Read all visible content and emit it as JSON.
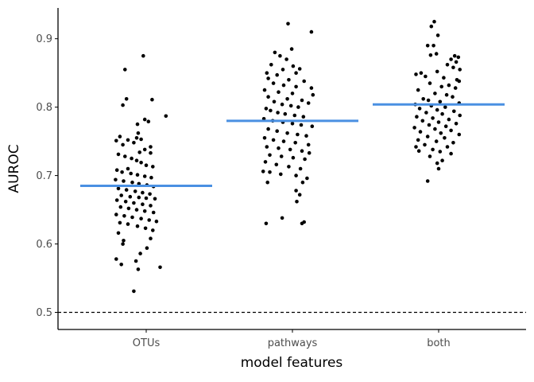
{
  "chart_data": {
    "type": "scatter",
    "xlabel": "model features",
    "ylabel": "AUROC",
    "categories": [
      "OTUs",
      "pathways",
      "both"
    ],
    "ylim": [
      0.475,
      0.945
    ],
    "yticks": [
      0.5,
      0.6,
      0.7,
      0.8,
      0.9
    ],
    "ytick_labels": [
      "0.5",
      "0.6",
      "0.7",
      "0.8",
      "0.9"
    ],
    "grid": false,
    "legend": "none",
    "reference_line": {
      "y": 0.5,
      "style": "dashed",
      "color": "#000000"
    },
    "means": [
      0.685,
      0.78,
      0.804
    ],
    "mean_line_color": "#4a90e2",
    "point_color": "#000000",
    "series": [
      {
        "category": "OTUs",
        "points": [
          {
            "x": -0.04,
            "y": 0.875
          },
          {
            "x": -0.29,
            "y": 0.855
          },
          {
            "x": -0.27,
            "y": 0.812
          },
          {
            "x": 0.08,
            "y": 0.811
          },
          {
            "x": -0.32,
            "y": 0.803
          },
          {
            "x": 0.27,
            "y": 0.787
          },
          {
            "x": -0.02,
            "y": 0.782
          },
          {
            "x": 0.03,
            "y": 0.779
          },
          {
            "x": -0.12,
            "y": 0.775
          },
          {
            "x": -0.11,
            "y": 0.762
          },
          {
            "x": -0.36,
            "y": 0.757
          },
          {
            "x": -0.13,
            "y": 0.755
          },
          {
            "x": -0.07,
            "y": 0.753
          },
          {
            "x": -0.25,
            "y": 0.752
          },
          {
            "x": -0.41,
            "y": 0.751
          },
          {
            "x": -0.17,
            "y": 0.748
          },
          {
            "x": -0.32,
            "y": 0.745
          },
          {
            "x": 0.06,
            "y": 0.742
          },
          {
            "x": -0.02,
            "y": 0.738
          },
          {
            "x": -0.09,
            "y": 0.734
          },
          {
            "x": 0.06,
            "y": 0.733
          },
          {
            "x": -0.38,
            "y": 0.731
          },
          {
            "x": -0.29,
            "y": 0.728
          },
          {
            "x": -0.2,
            "y": 0.725
          },
          {
            "x": -0.13,
            "y": 0.722
          },
          {
            "x": -0.07,
            "y": 0.719
          },
          {
            "x": 0.0,
            "y": 0.715
          },
          {
            "x": 0.09,
            "y": 0.713
          },
          {
            "x": -0.25,
            "y": 0.71
          },
          {
            "x": -0.4,
            "y": 0.708
          },
          {
            "x": -0.33,
            "y": 0.705
          },
          {
            "x": -0.21,
            "y": 0.703
          },
          {
            "x": -0.12,
            "y": 0.701
          },
          {
            "x": -0.02,
            "y": 0.699
          },
          {
            "x": 0.07,
            "y": 0.697
          },
          {
            "x": -0.42,
            "y": 0.694
          },
          {
            "x": -0.31,
            "y": 0.692
          },
          {
            "x": -0.19,
            "y": 0.69
          },
          {
            "x": -0.1,
            "y": 0.688
          },
          {
            "x": 0.01,
            "y": 0.686
          },
          {
            "x": 0.1,
            "y": 0.684
          },
          {
            "x": -0.38,
            "y": 0.681
          },
          {
            "x": -0.27,
            "y": 0.679
          },
          {
            "x": -0.15,
            "y": 0.677
          },
          {
            "x": -0.05,
            "y": 0.675
          },
          {
            "x": 0.05,
            "y": 0.673
          },
          {
            "x": -0.34,
            "y": 0.671
          },
          {
            "x": -0.22,
            "y": 0.669
          },
          {
            "x": -0.1,
            "y": 0.668
          },
          {
            "x": 0.0,
            "y": 0.667
          },
          {
            "x": 0.12,
            "y": 0.666
          },
          {
            "x": -0.4,
            "y": 0.664
          },
          {
            "x": -0.28,
            "y": 0.662
          },
          {
            "x": -0.17,
            "y": 0.66
          },
          {
            "x": -0.05,
            "y": 0.658
          },
          {
            "x": 0.06,
            "y": 0.656
          },
          {
            "x": -0.35,
            "y": 0.654
          },
          {
            "x": -0.24,
            "y": 0.652
          },
          {
            "x": -0.13,
            "y": 0.65
          },
          {
            "x": -0.02,
            "y": 0.648
          },
          {
            "x": 0.1,
            "y": 0.646
          },
          {
            "x": -0.41,
            "y": 0.643
          },
          {
            "x": -0.3,
            "y": 0.641
          },
          {
            "x": -0.19,
            "y": 0.639
          },
          {
            "x": -0.07,
            "y": 0.637
          },
          {
            "x": 0.04,
            "y": 0.635
          },
          {
            "x": 0.14,
            "y": 0.633
          },
          {
            "x": -0.36,
            "y": 0.631
          },
          {
            "x": -0.25,
            "y": 0.629
          },
          {
            "x": -0.12,
            "y": 0.626
          },
          {
            "x": -0.01,
            "y": 0.623
          },
          {
            "x": 0.09,
            "y": 0.62
          },
          {
            "x": -0.38,
            "y": 0.616
          },
          {
            "x": 0.06,
            "y": 0.608
          },
          {
            "x": -0.31,
            "y": 0.605
          },
          {
            "x": -0.32,
            "y": 0.6
          },
          {
            "x": 0.01,
            "y": 0.594
          },
          {
            "x": -0.08,
            "y": 0.586
          },
          {
            "x": -0.41,
            "y": 0.578
          },
          {
            "x": -0.14,
            "y": 0.575
          },
          {
            "x": -0.34,
            "y": 0.57
          },
          {
            "x": 0.19,
            "y": 0.566
          },
          {
            "x": -0.11,
            "y": 0.563
          },
          {
            "x": -0.17,
            "y": 0.531
          }
        ]
      },
      {
        "category": "pathways",
        "points": [
          {
            "x": -0.06,
            "y": 0.922
          },
          {
            "x": 0.26,
            "y": 0.91
          },
          {
            "x": -0.24,
            "y": 0.88
          },
          {
            "x": -0.01,
            "y": 0.885
          },
          {
            "x": -0.17,
            "y": 0.875
          },
          {
            "x": -0.08,
            "y": 0.87
          },
          {
            "x": -0.29,
            "y": 0.862
          },
          {
            "x": 0.01,
            "y": 0.86
          },
          {
            "x": 0.1,
            "y": 0.856
          },
          {
            "x": -0.13,
            "y": 0.855
          },
          {
            "x": -0.35,
            "y": 0.85
          },
          {
            "x": 0.05,
            "y": 0.85
          },
          {
            "x": -0.21,
            "y": 0.847
          },
          {
            "x": -0.33,
            "y": 0.842
          },
          {
            "x": -0.05,
            "y": 0.84
          },
          {
            "x": 0.16,
            "y": 0.838
          },
          {
            "x": -0.26,
            "y": 0.835
          },
          {
            "x": -0.12,
            "y": 0.832
          },
          {
            "x": 0.05,
            "y": 0.83
          },
          {
            "x": 0.26,
            "y": 0.828
          },
          {
            "x": -0.38,
            "y": 0.825
          },
          {
            "x": -0.19,
            "y": 0.822
          },
          {
            "x": 0.0,
            "y": 0.82
          },
          {
            "x": 0.28,
            "y": 0.818
          },
          {
            "x": -0.33,
            "y": 0.815
          },
          {
            "x": -0.07,
            "y": 0.812
          },
          {
            "x": 0.13,
            "y": 0.81
          },
          {
            "x": -0.25,
            "y": 0.808
          },
          {
            "x": 0.22,
            "y": 0.806
          },
          {
            "x": -0.14,
            "y": 0.804
          },
          {
            "x": -0.02,
            "y": 0.802
          },
          {
            "x": 0.08,
            "y": 0.8
          },
          {
            "x": -0.36,
            "y": 0.798
          },
          {
            "x": -0.3,
            "y": 0.795
          },
          {
            "x": -0.2,
            "y": 0.792
          },
          {
            "x": -0.1,
            "y": 0.79
          },
          {
            "x": 0.03,
            "y": 0.788
          },
          {
            "x": 0.15,
            "y": 0.786
          },
          {
            "x": -0.39,
            "y": 0.783
          },
          {
            "x": -0.27,
            "y": 0.78
          },
          {
            "x": -0.13,
            "y": 0.778
          },
          {
            "x": 0.0,
            "y": 0.776
          },
          {
            "x": 0.12,
            "y": 0.774
          },
          {
            "x": 0.27,
            "y": 0.772
          },
          {
            "x": -0.33,
            "y": 0.768
          },
          {
            "x": -0.21,
            "y": 0.765
          },
          {
            "x": -0.07,
            "y": 0.762
          },
          {
            "x": 0.07,
            "y": 0.76
          },
          {
            "x": 0.19,
            "y": 0.758
          },
          {
            "x": -0.38,
            "y": 0.755
          },
          {
            "x": -0.26,
            "y": 0.752
          },
          {
            "x": -0.12,
            "y": 0.75
          },
          {
            "x": 0.04,
            "y": 0.748
          },
          {
            "x": 0.22,
            "y": 0.745
          },
          {
            "x": -0.35,
            "y": 0.742
          },
          {
            "x": -0.19,
            "y": 0.74
          },
          {
            "x": -0.03,
            "y": 0.738
          },
          {
            "x": 0.13,
            "y": 0.736
          },
          {
            "x": 0.23,
            "y": 0.733
          },
          {
            "x": -0.31,
            "y": 0.73
          },
          {
            "x": -0.15,
            "y": 0.728
          },
          {
            "x": 0.01,
            "y": 0.726
          },
          {
            "x": 0.17,
            "y": 0.724
          },
          {
            "x": -0.37,
            "y": 0.72
          },
          {
            "x": -0.22,
            "y": 0.716
          },
          {
            "x": -0.05,
            "y": 0.713
          },
          {
            "x": 0.11,
            "y": 0.71
          },
          {
            "x": -0.4,
            "y": 0.706
          },
          {
            "x": -0.31,
            "y": 0.705
          },
          {
            "x": -0.16,
            "y": 0.702
          },
          {
            "x": 0.05,
            "y": 0.7
          },
          {
            "x": 0.2,
            "y": 0.696
          },
          {
            "x": -0.34,
            "y": 0.69
          },
          {
            "x": 0.14,
            "y": 0.69
          },
          {
            "x": 0.05,
            "y": 0.678
          },
          {
            "x": 0.1,
            "y": 0.672
          },
          {
            "x": 0.06,
            "y": 0.662
          },
          {
            "x": -0.14,
            "y": 0.638
          },
          {
            "x": 0.16,
            "y": 0.632
          },
          {
            "x": -0.36,
            "y": 0.63
          },
          {
            "x": 0.13,
            "y": 0.63
          }
        ]
      },
      {
        "category": "both",
        "points": [
          {
            "x": -0.06,
            "y": 0.925
          },
          {
            "x": -0.1,
            "y": 0.918
          },
          {
            "x": -0.01,
            "y": 0.905
          },
          {
            "x": -0.15,
            "y": 0.89
          },
          {
            "x": -0.07,
            "y": 0.89
          },
          {
            "x": -0.03,
            "y": 0.878
          },
          {
            "x": -0.11,
            "y": 0.876
          },
          {
            "x": 0.22,
            "y": 0.875
          },
          {
            "x": 0.27,
            "y": 0.873
          },
          {
            "x": 0.17,
            "y": 0.87
          },
          {
            "x": 0.24,
            "y": 0.866
          },
          {
            "x": 0.12,
            "y": 0.862
          },
          {
            "x": 0.2,
            "y": 0.858
          },
          {
            "x": 0.29,
            "y": 0.855
          },
          {
            "x": -0.02,
            "y": 0.852
          },
          {
            "x": -0.24,
            "y": 0.85
          },
          {
            "x": -0.31,
            "y": 0.848
          },
          {
            "x": -0.18,
            "y": 0.845
          },
          {
            "x": 0.07,
            "y": 0.843
          },
          {
            "x": 0.25,
            "y": 0.84
          },
          {
            "x": 0.28,
            "y": 0.838
          },
          {
            "x": -0.12,
            "y": 0.835
          },
          {
            "x": 0.14,
            "y": 0.832
          },
          {
            "x": 0.04,
            "y": 0.83
          },
          {
            "x": 0.23,
            "y": 0.828
          },
          {
            "x": -0.28,
            "y": 0.825
          },
          {
            "x": -0.05,
            "y": 0.82
          },
          {
            "x": 0.11,
            "y": 0.818
          },
          {
            "x": 0.19,
            "y": 0.815
          },
          {
            "x": -0.21,
            "y": 0.812
          },
          {
            "x": -0.14,
            "y": 0.81
          },
          {
            "x": 0.02,
            "y": 0.808
          },
          {
            "x": 0.28,
            "y": 0.806
          },
          {
            "x": -0.32,
            "y": 0.804
          },
          {
            "x": -0.1,
            "y": 0.802
          },
          {
            "x": 0.09,
            "y": 0.8
          },
          {
            "x": -0.26,
            "y": 0.798
          },
          {
            "x": -0.02,
            "y": 0.796
          },
          {
            "x": 0.21,
            "y": 0.794
          },
          {
            "x": -0.17,
            "y": 0.792
          },
          {
            "x": 0.05,
            "y": 0.79
          },
          {
            "x": 0.29,
            "y": 0.788
          },
          {
            "x": -0.3,
            "y": 0.786
          },
          {
            "x": -0.08,
            "y": 0.784
          },
          {
            "x": 0.14,
            "y": 0.782
          },
          {
            "x": -0.22,
            "y": 0.78
          },
          {
            "x": 0.0,
            "y": 0.778
          },
          {
            "x": 0.24,
            "y": 0.776
          },
          {
            "x": -0.13,
            "y": 0.774
          },
          {
            "x": 0.1,
            "y": 0.772
          },
          {
            "x": -0.33,
            "y": 0.77
          },
          {
            "x": -0.05,
            "y": 0.768
          },
          {
            "x": 0.17,
            "y": 0.766
          },
          {
            "x": -0.25,
            "y": 0.764
          },
          {
            "x": 0.03,
            "y": 0.762
          },
          {
            "x": 0.28,
            "y": 0.76
          },
          {
            "x": -0.15,
            "y": 0.757
          },
          {
            "x": 0.08,
            "y": 0.755
          },
          {
            "x": -0.28,
            "y": 0.752
          },
          {
            "x": -0.03,
            "y": 0.75
          },
          {
            "x": 0.2,
            "y": 0.748
          },
          {
            "x": -0.19,
            "y": 0.745
          },
          {
            "x": -0.31,
            "y": 0.742
          },
          {
            "x": 0.12,
            "y": 0.742
          },
          {
            "x": -0.08,
            "y": 0.738
          },
          {
            "x": -0.27,
            "y": 0.736
          },
          {
            "x": 0.02,
            "y": 0.735
          },
          {
            "x": 0.17,
            "y": 0.732
          },
          {
            "x": -0.12,
            "y": 0.728
          },
          {
            "x": 0.05,
            "y": 0.722
          },
          {
            "x": -0.02,
            "y": 0.718
          },
          {
            "x": 0.0,
            "y": 0.71
          },
          {
            "x": -0.15,
            "y": 0.692
          }
        ]
      }
    ]
  }
}
